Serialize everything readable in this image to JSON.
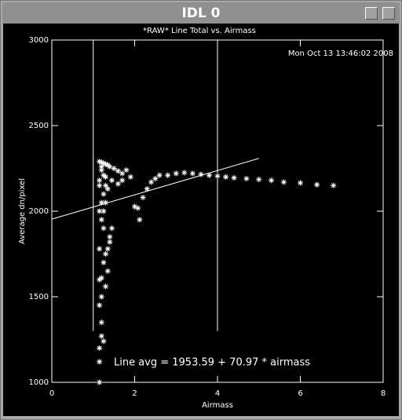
{
  "window_title": "IDL 0",
  "chart_data": {
    "type": "scatter",
    "title": "*RAW* Line Total vs. Airmass",
    "timestamp": "Mon Oct 13 13:46:02 2008",
    "xlabel": "Airmass",
    "ylabel": "Average dn/pixel",
    "annotation": "Line avg = 1953.59 + 70.97 * airmass",
    "xlim": [
      0,
      8
    ],
    "ylim": [
      1000,
      3000
    ],
    "xticks": [
      0,
      2,
      4,
      6,
      8
    ],
    "yticks": [
      1000,
      1500,
      2000,
      2500,
      3000
    ],
    "color": "#ffffff",
    "x": [
      1.15,
      1.2,
      1.25,
      1.3,
      1.35,
      1.4,
      1.5,
      1.6,
      1.7,
      1.8,
      1.2,
      1.25,
      1.15,
      1.3,
      1.45,
      1.6,
      1.7,
      1.9,
      1.2,
      2.0,
      2.08,
      2.12,
      2.2,
      2.3,
      2.4,
      2.5,
      2.6,
      2.8,
      3.0,
      3.2,
      3.4,
      3.6,
      3.8,
      4.0,
      4.2,
      4.4,
      4.7,
      5.0,
      5.3,
      5.6,
      6.0,
      6.4,
      6.8,
      1.15,
      1.15,
      1.15,
      1.2,
      1.25,
      1.2,
      1.15,
      1.2,
      1.15,
      1.2,
      1.3,
      1.35,
      1.25,
      1.3,
      1.15,
      1.35,
      1.4,
      1.45,
      1.25,
      1.2,
      1.15,
      1.2,
      1.25,
      1.3,
      1.15,
      1.3,
      1.35,
      1.4,
      1.25
    ],
    "values": [
      2290,
      2285,
      2280,
      2275,
      2270,
      2260,
      2250,
      2235,
      2220,
      2240,
      2240,
      2210,
      2150,
      2200,
      2180,
      2160,
      2180,
      2200,
      2260,
      2027,
      2018,
      1950,
      2080,
      2130,
      2170,
      2190,
      2210,
      2210,
      2220,
      2225,
      2220,
      2215,
      2210,
      2205,
      2200,
      2195,
      2190,
      2185,
      2180,
      2170,
      2165,
      2155,
      2150,
      1000,
      1120,
      1200,
      1270,
      1240,
      1350,
      1450,
      1500,
      1600,
      1610,
      1560,
      1650,
      1700,
      1750,
      1780,
      1780,
      1850,
      1900,
      1900,
      1950,
      2000,
      2050,
      2100,
      2150,
      2180,
      2050,
      2130,
      1820,
      2000
    ],
    "vlines": [
      1,
      4
    ],
    "vline_yrange": [
      1300,
      3000
    ],
    "fit": {
      "intercept": 1953.59,
      "slope": 70.97,
      "x_range": [
        0,
        5
      ]
    }
  }
}
